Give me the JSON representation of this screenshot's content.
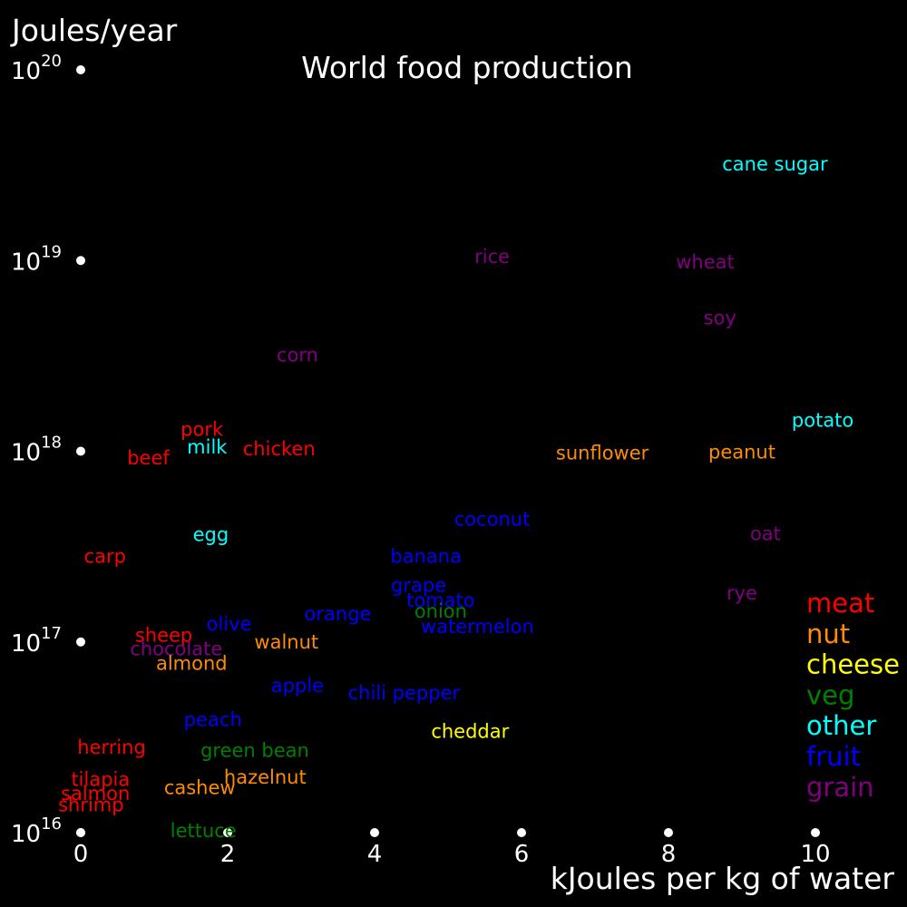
{
  "chart_data": {
    "type": "scatter",
    "title": "World food production",
    "xlabel": "kJoules per kg of water",
    "ylabel": "Joules/year",
    "background": "#000000",
    "text_color": "#ffffff",
    "xlim": [
      0,
      10
    ],
    "ylim": [
      1e+16,
      1e+20
    ],
    "y_scale": "log",
    "grid": false,
    "marker": "labels",
    "legend_position": "right",
    "x_ticks": [
      {
        "value": 0,
        "label": "0"
      },
      {
        "value": 2,
        "label": "2"
      },
      {
        "value": 4,
        "label": "4"
      },
      {
        "value": 6,
        "label": "6"
      },
      {
        "value": 8,
        "label": "8"
      },
      {
        "value": 10,
        "label": "10"
      }
    ],
    "y_ticks": [
      {
        "value": 1e+16,
        "base": "10",
        "exponent": "16"
      },
      {
        "value": 1e+17,
        "base": "10",
        "exponent": "17"
      },
      {
        "value": 1e+18,
        "base": "10",
        "exponent": "18"
      },
      {
        "value": 1e+19,
        "base": "10",
        "exponent": "19"
      },
      {
        "value": 1e+20,
        "base": "10",
        "exponent": "20"
      }
    ],
    "categories": [
      {
        "name": "meat",
        "color": "#ff0000"
      },
      {
        "name": "nut",
        "color": "#ff8c00"
      },
      {
        "name": "cheese",
        "color": "#ffff00"
      },
      {
        "name": "veg",
        "color": "#008000"
      },
      {
        "name": "other",
        "color": "#00ffff"
      },
      {
        "name": "fruit",
        "color": "#0000ff"
      },
      {
        "name": "grain",
        "color": "#800080"
      }
    ],
    "points": [
      {
        "label": "cane sugar",
        "category": "other",
        "x": 9.45,
        "y": 3.2e+19
      },
      {
        "label": "rice",
        "category": "grain",
        "x": 5.6,
        "y": 1.05e+19
      },
      {
        "label": "wheat",
        "category": "grain",
        "x": 8.5,
        "y": 9.8e+18
      },
      {
        "label": "soy",
        "category": "grain",
        "x": 8.7,
        "y": 5e+18
      },
      {
        "label": "corn",
        "category": "grain",
        "x": 2.95,
        "y": 3.2e+18
      },
      {
        "label": "potato",
        "category": "other",
        "x": 10.1,
        "y": 1.45e+18
      },
      {
        "label": "pork",
        "category": "meat",
        "x": 1.65,
        "y": 1.3e+18
      },
      {
        "label": "milk",
        "category": "other",
        "x": 1.72,
        "y": 1.05e+18
      },
      {
        "label": "chicken",
        "category": "meat",
        "x": 2.7,
        "y": 1.03e+18
      },
      {
        "label": "beef",
        "category": "meat",
        "x": 0.92,
        "y": 9.2e+17
      },
      {
        "label": "sunflower",
        "category": "nut",
        "x": 7.1,
        "y": 9.8e+17
      },
      {
        "label": "peanut",
        "category": "nut",
        "x": 9.0,
        "y": 9.9e+17
      },
      {
        "label": "coconut",
        "category": "fruit",
        "x": 5.6,
        "y": 4.4e+17
      },
      {
        "label": "oat",
        "category": "grain",
        "x": 9.32,
        "y": 3.7e+17
      },
      {
        "label": "egg",
        "category": "other",
        "x": 1.77,
        "y": 3.65e+17
      },
      {
        "label": "carp",
        "category": "meat",
        "x": 0.33,
        "y": 2.8e+17
      },
      {
        "label": "banana",
        "category": "fruit",
        "x": 4.7,
        "y": 2.8e+17
      },
      {
        "label": "grape",
        "category": "fruit",
        "x": 4.6,
        "y": 1.98e+17
      },
      {
        "label": "rye",
        "category": "grain",
        "x": 9.0,
        "y": 1.8e+17
      },
      {
        "label": "tomato",
        "category": "fruit",
        "x": 4.9,
        "y": 1.65e+17
      },
      {
        "label": "onion",
        "category": "veg",
        "x": 4.9,
        "y": 1.45e+17
      },
      {
        "label": "orange",
        "category": "fruit",
        "x": 3.5,
        "y": 1.4e+17
      },
      {
        "label": "olive",
        "category": "fruit",
        "x": 2.02,
        "y": 1.24e+17
      },
      {
        "label": "watermelon",
        "category": "fruit",
        "x": 5.4,
        "y": 1.2e+17
      },
      {
        "label": "sheep",
        "category": "meat",
        "x": 1.13,
        "y": 1.08e+17
      },
      {
        "label": "walnut",
        "category": "nut",
        "x": 2.8,
        "y": 1e+17
      },
      {
        "label": "chocolate",
        "category": "grain",
        "x": 1.3,
        "y": 9.2e+16
      },
      {
        "label": "almond",
        "category": "nut",
        "x": 1.51,
        "y": 7.7e+16
      },
      {
        "label": "apple",
        "category": "fruit",
        "x": 2.95,
        "y": 5.9e+16
      },
      {
        "label": "chili pepper",
        "category": "fruit",
        "x": 4.4,
        "y": 5.4e+16
      },
      {
        "label": "peach",
        "category": "fruit",
        "x": 1.8,
        "y": 3.9e+16
      },
      {
        "label": "cheddar",
        "category": "cheese",
        "x": 5.3,
        "y": 3.4e+16
      },
      {
        "label": "herring",
        "category": "meat",
        "x": 0.42,
        "y": 2.8e+16
      },
      {
        "label": "green bean",
        "category": "veg",
        "x": 2.37,
        "y": 2.7e+16
      },
      {
        "label": "hazelnut",
        "category": "nut",
        "x": 2.51,
        "y": 1.95e+16
      },
      {
        "label": "tilapia",
        "category": "meat",
        "x": 0.27,
        "y": 1.9e+16
      },
      {
        "label": "cashew",
        "category": "nut",
        "x": 1.62,
        "y": 1.72e+16
      },
      {
        "label": "salmon",
        "category": "meat",
        "x": 0.2,
        "y": 1.6e+16
      },
      {
        "label": "shrimp",
        "category": "meat",
        "x": 0.14,
        "y": 1.4e+16
      },
      {
        "label": "lettuce",
        "category": "veg",
        "x": 1.67,
        "y": 1.02e+16
      }
    ]
  }
}
